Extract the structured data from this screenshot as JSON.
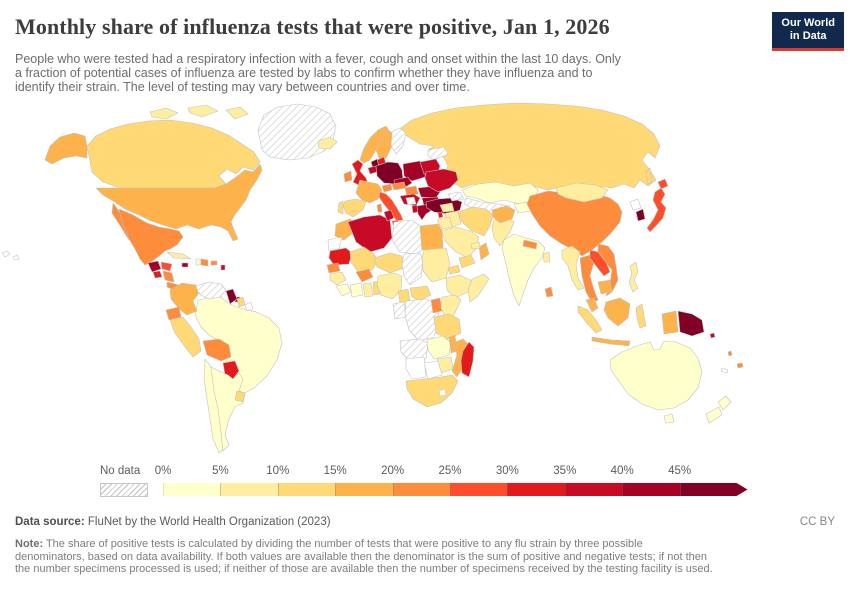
{
  "header": {
    "title": "Monthly share of influenza tests that were positive, Jan 1, 2026",
    "subtitle_lines": [
      "People who were tested had a respiratory infection with a fever, cough and onset within the last 10 days. Only",
      "a fraction of potential cases of influenza are tested by labs to confirm whether they have influenza and to",
      "identify their strain. The level of testing may vary between countries and over time."
    ],
    "logo": {
      "line1": "Our World",
      "line2": "in Data",
      "bg_color": "#12294E",
      "accent_color": "#E0362C"
    }
  },
  "legend": {
    "no_data_label": "No data",
    "ticks": [
      "0%",
      "5%",
      "10%",
      "15%",
      "20%",
      "25%",
      "30%",
      "35%",
      "40%",
      "45%"
    ],
    "colors": [
      "#FFFFCC",
      "#FFEDA0",
      "#FED976",
      "#FEB24C",
      "#FD8D3C",
      "#FC4E2A",
      "#E31A1C",
      "#C70A25",
      "#A50026",
      "#800026"
    ]
  },
  "map": {
    "border_color": "#c2c2c2",
    "no_data_pattern_color": "#cfcfcf",
    "values": {
      "canada": 2,
      "alaska": 3,
      "arctic-islands": 1,
      "greenland": "nd",
      "iceland": 1,
      "hawaii": "w",
      "usa": 3,
      "mexico": 4,
      "guatemala": 8,
      "el-salvador": 6,
      "honduras": 5,
      "nicaragua": 4,
      "costa-rica-panama": 4,
      "cuba": 1,
      "jamaica": 8,
      "haiti": 0,
      "dominican-republic": 4,
      "puerto-rico": 4,
      "lesser-antilles": 7,
      "trinidad-and-tobago": 7,
      "colombia": 3,
      "venezuela": "nd",
      "guyana": 9,
      "suriname": 2,
      "french-guiana": "w",
      "ecuador": 4,
      "peru": 2,
      "brazil": 0,
      "bolivia": 4,
      "paraguay": 6,
      "uruguay": 2,
      "chile": 0,
      "argentina": 0,
      "united-kingdom": 6,
      "ireland": 4,
      "france": 3,
      "spain": 2,
      "portugal": 2,
      "norway": 3,
      "sweden": 3,
      "finland": "nd",
      "denmark": 6,
      "netherlands": 9,
      "belgium": 7,
      "germany": 9,
      "poland": 8,
      "czechia-slovakia": 8,
      "switzerland": 4,
      "austria": 4,
      "hungary": 4,
      "croatia-serbia": 7,
      "bosnia": "nd",
      "romania": 8,
      "bulgaria": 8,
      "albania": 7,
      "greece": 8,
      "italy": 5,
      "sicily": 5,
      "sardinia": 4,
      "ukraine": 7,
      "belarus": 7,
      "baltic-states": "nd",
      "turkey": 9,
      "russia": 2,
      "sakhalin": 2,
      "kazakhstan": 0,
      "uzbekistan-turkmenistan": "nd",
      "kyrgyzstan-tajikistan": 0,
      "georgia-azerbaijan": "nd",
      "mongolia": 1,
      "china": 4,
      "north-korea": "w",
      "south-korea": 9,
      "japan": 5,
      "india": 0,
      "nepal": 4,
      "bangladesh": 1,
      "sri-lanka": 4,
      "pakistan": 1,
      "afghanistan": 3,
      "iran": 2,
      "iraq": 1,
      "syria": 1,
      "lebanon": 6,
      "israel-jordan": 1,
      "saudi-arabia": 1,
      "yemen": 2,
      "oman": 3,
      "uae": 1,
      "myanmar": 1,
      "thailand": 4,
      "laos": 5,
      "vietnam": 4,
      "cambodia": 3,
      "malaysia": 3,
      "sumatra": 2,
      "java": 3,
      "borneo": 3,
      "sulawesi": 2,
      "philippines": 1,
      "west-papua": 3,
      "papua-new-guinea": 9,
      "solomon-islands": 7,
      "fiji": 4,
      "vanuatu": 4,
      "new-caledonia": "w",
      "australia": 0,
      "tasmania": 0,
      "new-zealand": 0,
      "morocco": 3,
      "western-sahara": "w",
      "algeria": 7,
      "tunisia": 7,
      "libya": "nd",
      "egypt": 3,
      "mauritania": 6,
      "mali": 2,
      "senegal": 4,
      "guinea": 1,
      "sierra-leone-liberia": 0,
      "ivory-coast": 0,
      "ghana": 1,
      "togo-benin": 2,
      "burkina-faso": 4,
      "niger": 2,
      "nigeria": 1,
      "chad": "nd",
      "sudan": 1,
      "eritrea": 2,
      "ethiopia": 1,
      "somalia": 1,
      "cameroon": 2,
      "central-african-republic": 2,
      "gabon-congo": "nd",
      "dr-congo": "nd",
      "uganda": 4,
      "kenya": 1,
      "tanzania": 2,
      "angola": "nd",
      "zambia": 0,
      "malawi": 3,
      "mozambique": 3,
      "zimbabwe": 1,
      "botswana": "w",
      "namibia": "w",
      "south-africa": 2,
      "lesotho": "w",
      "madagascar": 6
    }
  },
  "footer": {
    "source_label": "Data source:",
    "source_text": " FluNet by the World Health Organization (2023)",
    "license": "CC BY",
    "note_label": "Note:",
    "note_lines": [
      " The share of positive tests is calculated by dividing the number of tests that were positive to any flu strain by three possible",
      "denominators, based on data availability. If both values are available then the denominator is the sum of positive and negative tests; if not then",
      "the number specimens processed is used; if neither of those are available then the number of specimens received by the testing facility is used."
    ]
  }
}
